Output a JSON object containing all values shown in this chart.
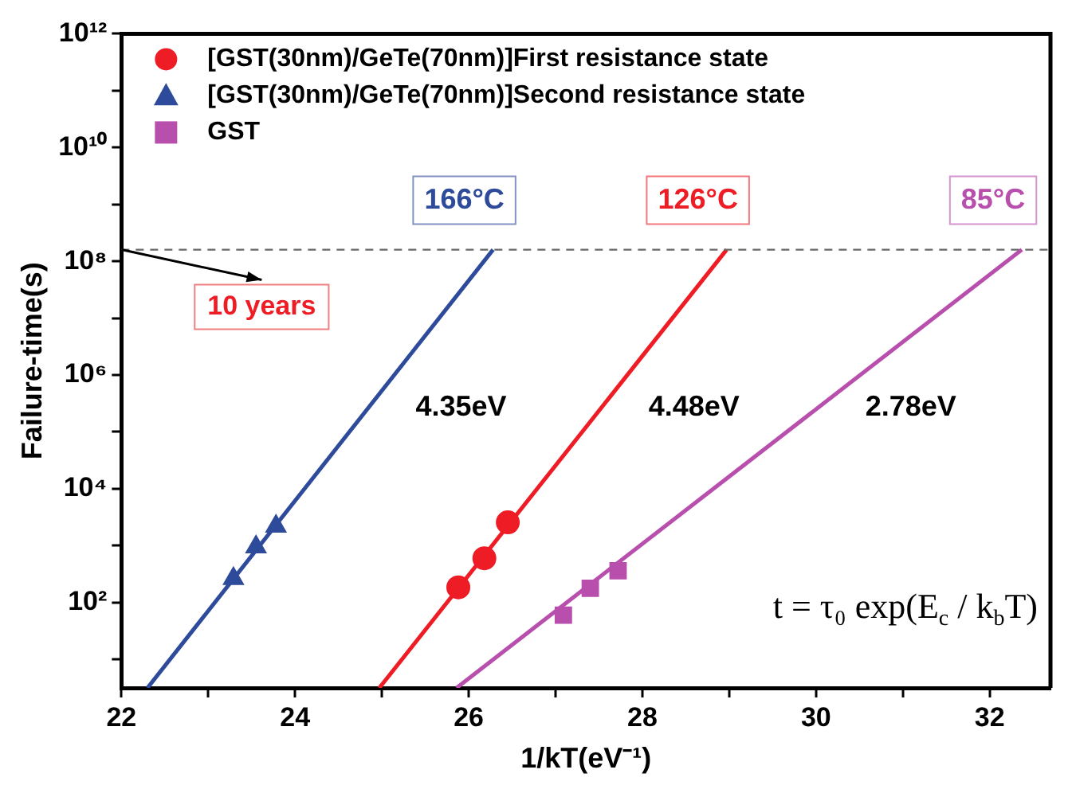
{
  "chart_data": {
    "type": "scatter",
    "xlabel": "1/kT(eV⁻¹)",
    "ylabel": "Failure-time(s)",
    "xlim": [
      22,
      32.7
    ],
    "ylim": [
      3.16,
      1000000000000.0
    ],
    "log": "y",
    "xticks": [
      22,
      {
        "value": 23,
        "label": null
      },
      24,
      {
        "value": 25,
        "label": null
      },
      26,
      {
        "value": 27,
        "label": null
      },
      28,
      {
        "value": 29,
        "label": null
      },
      30,
      {
        "value": 31,
        "label": null
      },
      32
    ],
    "yticks": [
      {
        "value": 10,
        "label": null
      },
      {
        "value": 100,
        "label": "10²"
      },
      {
        "value": 1000,
        "label": null
      },
      {
        "value": 10000,
        "label": "10⁴"
      },
      {
        "value": 100000,
        "label": null
      },
      {
        "value": 1000000,
        "label": "10⁶"
      },
      {
        "value": 10000000,
        "label": null
      },
      {
        "value": 100000000,
        "label": "10⁸"
      },
      {
        "value": 1000000000,
        "label": null
      },
      {
        "value": 10000000000,
        "label": "10¹⁰"
      },
      {
        "value": 100000000000,
        "label": null
      },
      {
        "value": 1000000000000,
        "label": "10¹²"
      }
    ],
    "series": [
      {
        "name": "[GST(30nm)/GeTe(70nm)]First resistance state",
        "color": "#ee1c25",
        "marker": "circle",
        "x": [
          25.88,
          26.18,
          26.45
        ],
        "values": [
          185,
          600,
          2570
        ]
      },
      {
        "name": "[GST(30nm)/GeTe(70nm)]Second resistance state",
        "color": "#2e4b9b",
        "marker": "triangle",
        "x": [
          23.29,
          23.55,
          23.78
        ],
        "values": [
          263,
          950,
          2200
        ]
      },
      {
        "name": "GST",
        "color": "#b84fad",
        "marker": "square",
        "x": [
          27.09,
          27.4,
          27.72
        ],
        "values": [
          60,
          178,
          363
        ]
      },
      {
        "type": "line",
        "color": "#2e4b9b",
        "x": [
          22.3,
          26.28
        ],
        "values": [
          3.16,
          160000000.0
        ]
      },
      {
        "type": "line",
        "color": "#ee1c25",
        "x": [
          24.97,
          28.97
        ],
        "values": [
          3.16,
          160000000.0
        ]
      },
      {
        "type": "line",
        "color": "#b84fad",
        "x": [
          25.86,
          32.37
        ],
        "values": [
          3.16,
          160000000.0
        ]
      }
    ],
    "ref_lines": [
      {
        "axis": "y",
        "value": 160000000.0,
        "label": "10 years",
        "line_style": "dashed",
        "color": "#666666"
      }
    ],
    "annotations": [
      "166°C",
      "126°C",
      "85°C",
      "4.35eV",
      "4.48eV",
      "2.78eV",
      "t = τ₀ exp(E$_{c}$ / k$_{b}$T)"
    ],
    "legend": "top left",
    "grid": false
  }
}
